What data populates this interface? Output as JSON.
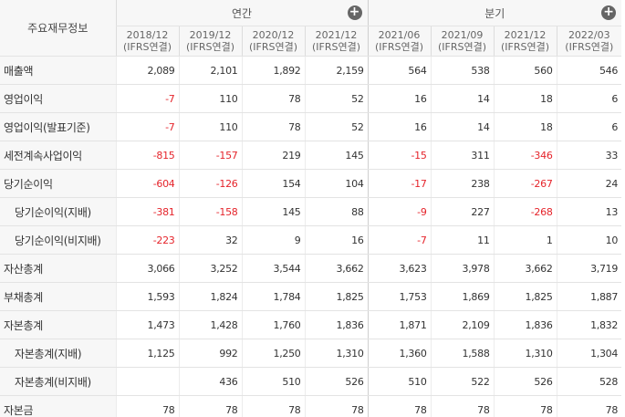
{
  "table": {
    "corner": "주요재무정보",
    "groups": [
      {
        "label": "연간",
        "columns": [
          {
            "period": "2018/12",
            "basis": "(IFRS연결)"
          },
          {
            "period": "2019/12",
            "basis": "(IFRS연결)"
          },
          {
            "period": "2020/12",
            "basis": "(IFRS연결)"
          },
          {
            "period": "2021/12",
            "basis": "(IFRS연결)"
          }
        ]
      },
      {
        "label": "분기",
        "columns": [
          {
            "period": "2021/06",
            "basis": "(IFRS연결)"
          },
          {
            "period": "2021/09",
            "basis": "(IFRS연결)"
          },
          {
            "period": "2021/12",
            "basis": "(IFRS연결)"
          },
          {
            "period": "2022/03",
            "basis": "(IFRS연결)"
          }
        ]
      }
    ],
    "rows": [
      {
        "label": "매출액",
        "values": [
          "2,089",
          "2,101",
          "1,892",
          "2,159",
          "564",
          "538",
          "560",
          "546"
        ]
      },
      {
        "label": "영업이익",
        "values": [
          "-7",
          "110",
          "78",
          "52",
          "16",
          "14",
          "18",
          "6"
        ]
      },
      {
        "label": "영업이익(발표기준)",
        "values": [
          "-7",
          "110",
          "78",
          "52",
          "16",
          "14",
          "18",
          "6"
        ]
      },
      {
        "label": "세전계속사업이익",
        "values": [
          "-815",
          "-157",
          "219",
          "145",
          "-15",
          "311",
          "-346",
          "33"
        ]
      },
      {
        "label": "당기순이익",
        "values": [
          "-604",
          "-126",
          "154",
          "104",
          "-17",
          "238",
          "-267",
          "24"
        ]
      },
      {
        "label": "당기순이익(지배)",
        "indent": true,
        "values": [
          "-381",
          "-158",
          "145",
          "88",
          "-9",
          "227",
          "-268",
          "13"
        ]
      },
      {
        "label": "당기순이익(비지배)",
        "indent": true,
        "values": [
          "-223",
          "32",
          "9",
          "16",
          "-7",
          "11",
          "1",
          "10"
        ]
      },
      {
        "label": "자산총계",
        "values": [
          "3,066",
          "3,252",
          "3,544",
          "3,662",
          "3,623",
          "3,978",
          "3,662",
          "3,719"
        ]
      },
      {
        "label": "부채총계",
        "values": [
          "1,593",
          "1,824",
          "1,784",
          "1,825",
          "1,753",
          "1,869",
          "1,825",
          "1,887"
        ]
      },
      {
        "label": "자본총계",
        "values": [
          "1,473",
          "1,428",
          "1,760",
          "1,836",
          "1,871",
          "2,109",
          "1,836",
          "1,832"
        ]
      },
      {
        "label": "자본총계(지배)",
        "indent": true,
        "values": [
          "1,125",
          "992",
          "1,250",
          "1,310",
          "1,360",
          "1,588",
          "1,310",
          "1,304"
        ]
      },
      {
        "label": "자본총계(비지배)",
        "indent": true,
        "values": [
          null,
          "436",
          "510",
          "526",
          "510",
          "522",
          "526",
          "528"
        ]
      },
      {
        "label": "자본금",
        "values": [
          "78",
          "78",
          "78",
          "78",
          "78",
          "78",
          "78",
          "78"
        ]
      }
    ]
  }
}
